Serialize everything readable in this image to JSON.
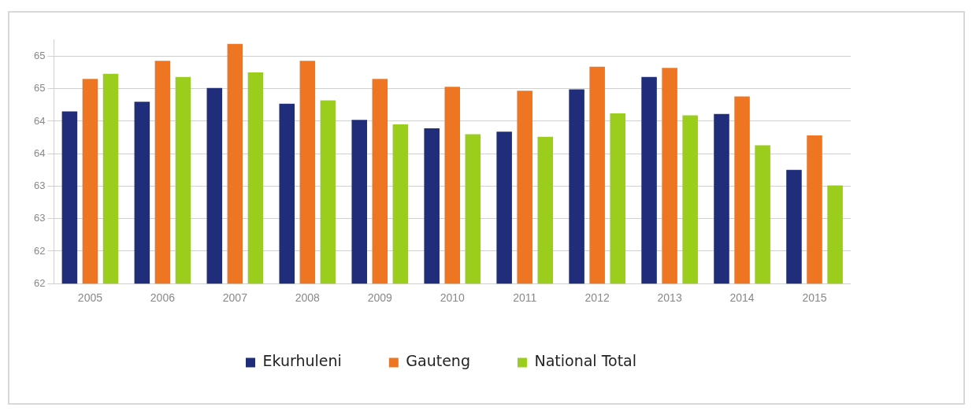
{
  "chart_data": {
    "type": "bar",
    "categories": [
      "2005",
      "2006",
      "2007",
      "2008",
      "2009",
      "2010",
      "2011",
      "2012",
      "2013",
      "2014",
      "2015"
    ],
    "series": [
      {
        "name": "Ekurhuleni",
        "color": "#1f2d7a",
        "values": [
          64.65,
          64.8,
          65.01,
          64.77,
          64.52,
          64.39,
          64.34,
          64.99,
          65.18,
          64.61,
          63.75
        ]
      },
      {
        "name": "Gauteng",
        "color": "#ee7623",
        "values": [
          65.15,
          65.43,
          65.69,
          65.43,
          65.15,
          65.03,
          64.97,
          65.34,
          65.32,
          64.88,
          64.28
        ]
      },
      {
        "name": "National Total",
        "color": "#9acd1c",
        "values": [
          65.23,
          65.18,
          65.25,
          64.82,
          64.45,
          64.3,
          64.26,
          64.62,
          64.59,
          64.13,
          63.51
        ]
      }
    ],
    "ylim": [
      62,
      65.75
    ],
    "yticks": [
      {
        "value": 62,
        "label": "62"
      },
      {
        "value": 62.5,
        "label": "62"
      },
      {
        "value": 63,
        "label": "63"
      },
      {
        "value": 63.5,
        "label": "63"
      },
      {
        "value": 64,
        "label": "64"
      },
      {
        "value": 64.5,
        "label": "64"
      },
      {
        "value": 65,
        "label": "65"
      },
      {
        "value": 65.5,
        "label": "65"
      }
    ],
    "grid": "y",
    "legend": "bottom"
  }
}
